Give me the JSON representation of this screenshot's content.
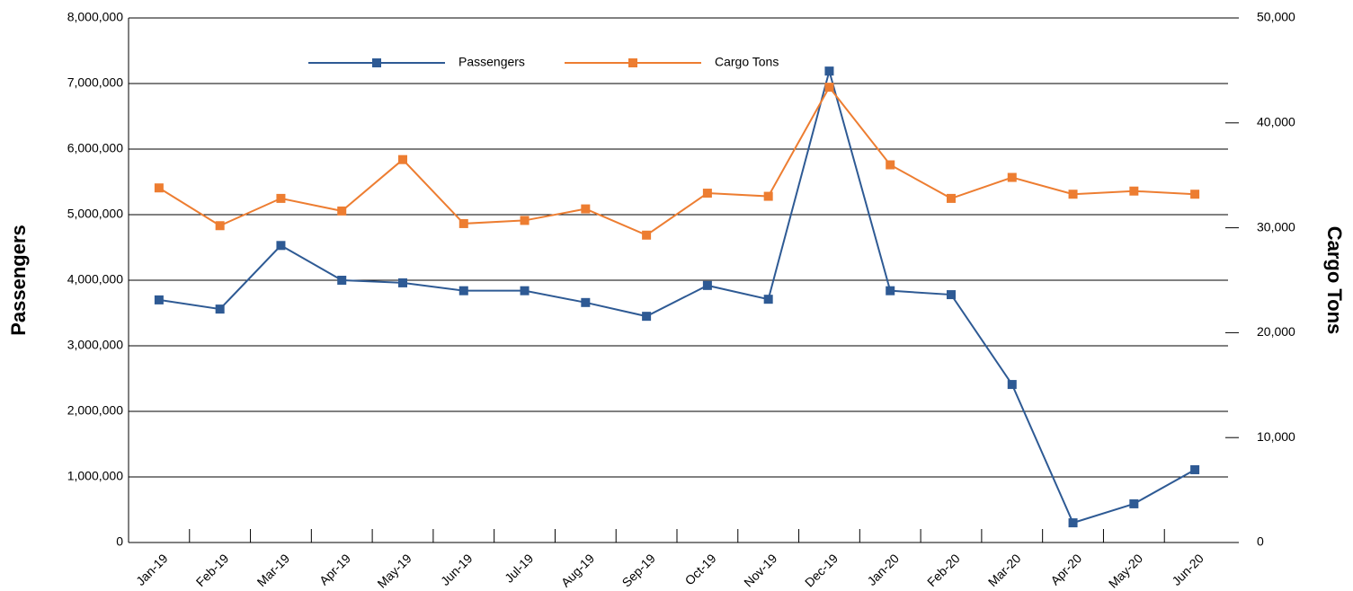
{
  "chart_data": {
    "type": "line",
    "categories": [
      "Jan-19",
      "Feb-19",
      "Mar-19",
      "Apr-19",
      "May-19",
      "Jun-19",
      "Jul-19",
      "Aug-19",
      "Sep-19",
      "Oct-19",
      "Nov-19",
      "Dec-19",
      "Jan-20",
      "Feb-20",
      "Mar-20",
      "Apr-20",
      "May-20",
      "Jun-20"
    ],
    "series": [
      {
        "name": "Passengers",
        "color": "#2e5a94",
        "values": [
          3700000,
          3560000,
          4530000,
          4000000,
          3960000,
          3840000,
          3840000,
          3660000,
          3450000,
          3920000,
          3710000,
          7190000,
          3840000,
          3780000,
          2410000,
          300000,
          590000,
          1110000
        ]
      },
      {
        "name": "Cargo Tons",
        "color": "#ed7d31",
        "axis": "y2",
        "values": [
          33800,
          30200,
          32800,
          31600,
          36500,
          30400,
          30700,
          31800,
          29300,
          33300,
          33000,
          43400,
          36000,
          32800,
          34800,
          33200,
          33500,
          33200
        ]
      }
    ],
    "ylabel": "Passengers",
    "y2label": "Cargo Tons",
    "ylim": [
      0,
      8000000
    ],
    "yticks": [
      0,
      {
        "value": 1000000,
        "label": "1,000,000"
      },
      {
        "value": 2000000,
        "label": "2,000,000"
      },
      {
        "value": 3000000,
        "label": "3,000,000"
      },
      {
        "value": 4000000,
        "label": "4,000,000"
      },
      {
        "value": 5000000,
        "label": "5,000,000"
      },
      {
        "value": 6000000,
        "label": "6,000,000"
      },
      {
        "value": 7000000,
        "label": "7,000,000"
      },
      {
        "value": 8000000,
        "label": "8,000,000"
      }
    ],
    "y2lim": [
      0,
      50000
    ],
    "y2ticks": [
      0,
      {
        "value": 10000,
        "label": "10,000"
      },
      {
        "value": 20000,
        "label": "20,000"
      },
      {
        "value": 30000,
        "label": "30,000"
      },
      {
        "value": 40000,
        "label": "40,000"
      },
      {
        "value": 50000,
        "label": "50,000"
      }
    ],
    "grid": true,
    "legend": "top"
  }
}
